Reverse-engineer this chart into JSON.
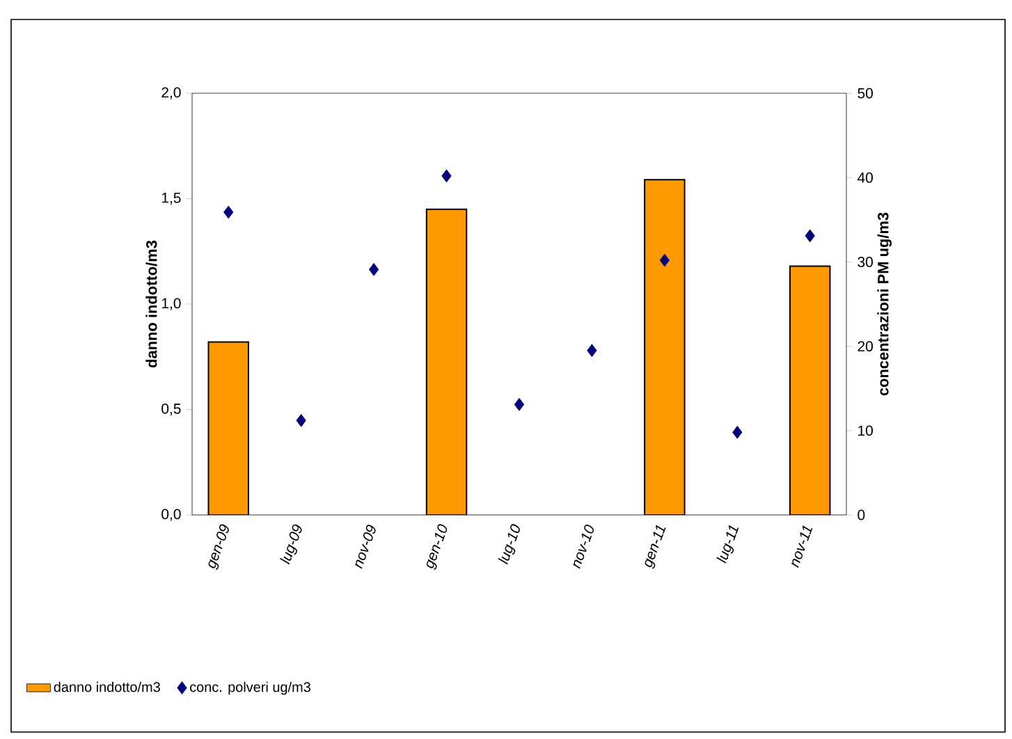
{
  "chart_data": {
    "type": "bar",
    "categories": [
      "gen-09",
      "lug-09",
      "nov-09",
      "gen-10",
      "lug-10",
      "nov-10",
      "gen-11",
      "lug-11",
      "nov-11"
    ],
    "ylabel": "danno indotto/m3",
    "y2label": "concentrazioni PM ug/m3",
    "ylim": [
      0,
      2
    ],
    "yticks": [
      {
        "value": 0,
        "label": "0,0"
      },
      {
        "value": 0.5,
        "label": "0,5"
      },
      {
        "value": 1,
        "label": "1,0"
      },
      {
        "value": 1.5,
        "label": "1,5"
      },
      {
        "value": 2,
        "label": "2,0"
      }
    ],
    "y2lim": [
      0,
      50
    ],
    "y2ticks": [
      0,
      10,
      20,
      30,
      40,
      50
    ],
    "series": [
      {
        "name": "danno indotto/m3",
        "color": "#ff9900",
        "values": [
          0.82,
          null,
          null,
          1.45,
          null,
          null,
          1.59,
          null,
          1.18
        ]
      },
      {
        "name": "conc. polveri ug/m3",
        "type": "scatter",
        "axis": "y2",
        "marker": "diamond",
        "color": "#000080",
        "values": [
          35.9,
          11.2,
          29.1,
          40.2,
          13.1,
          19.5,
          30.2,
          9.8,
          33.1
        ]
      }
    ],
    "grid": false,
    "legend": "bottom"
  }
}
